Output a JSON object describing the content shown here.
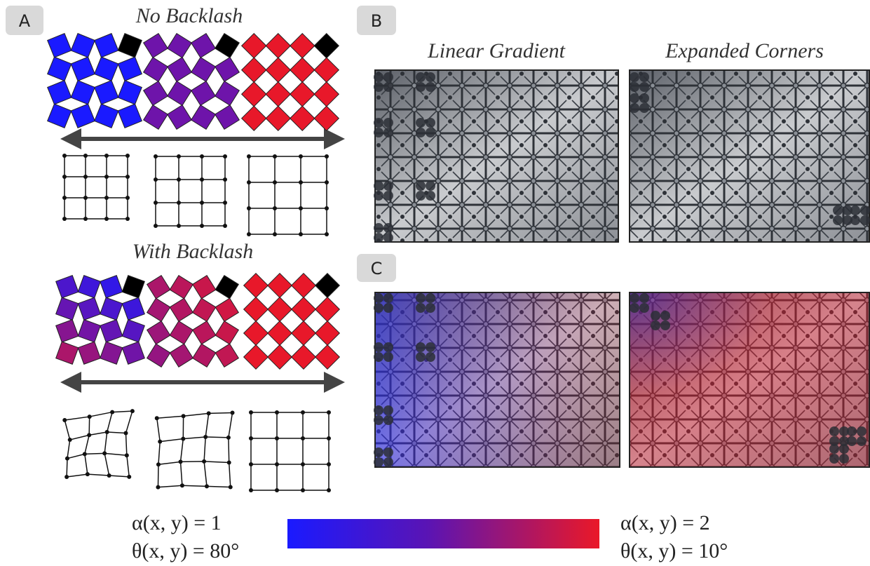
{
  "panel_a": {
    "label": "A",
    "top_title": "No Backlash",
    "bottom_title": "With Backlash"
  },
  "panel_b": {
    "label": "B",
    "titles": [
      "Linear Gradient",
      "Expanded Corners"
    ]
  },
  "panel_c": {
    "label": "C"
  },
  "colorbar": {
    "left": {
      "alpha": "α(x, y) = 1",
      "theta": "θ(x, y) = 80°"
    },
    "right": {
      "alpha": "α(x, y) = 2",
      "theta": "θ(x, y) = 10°"
    }
  }
}
